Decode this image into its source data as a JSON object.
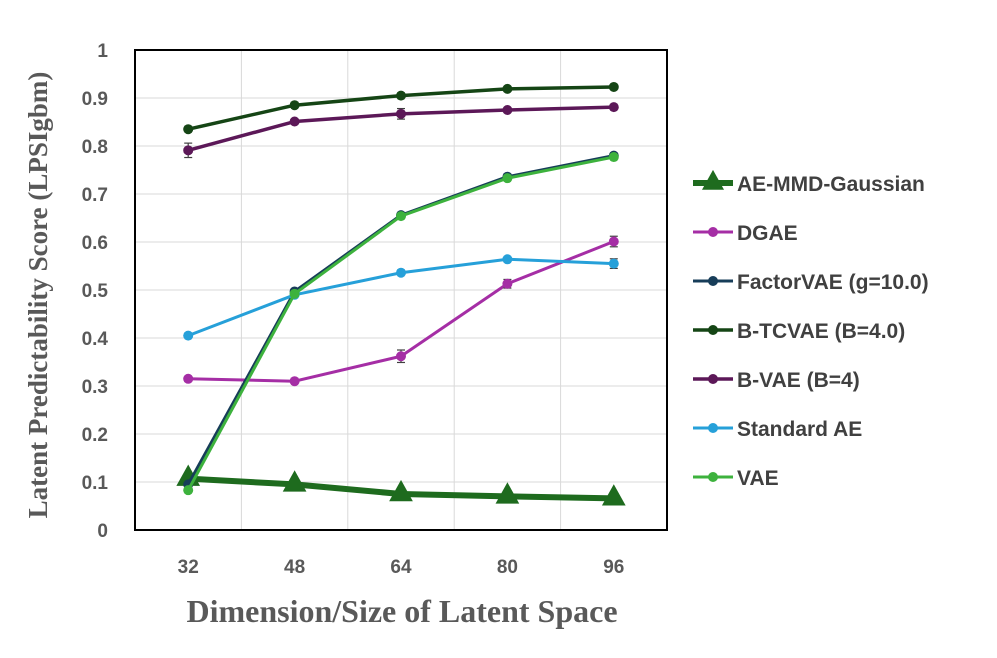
{
  "chart_data": {
    "type": "line",
    "title": "",
    "xlabel": "Dimension/Size of Latent Space",
    "ylabel": "Latent Predictability Score (LPSIgbm)",
    "categories": [
      "32",
      "48",
      "64",
      "80",
      "96"
    ],
    "ylim": [
      0,
      1
    ],
    "yticks": [
      "0",
      "0.1",
      "0.2",
      "0.3",
      "0.4",
      "0.5",
      "0.6",
      "0.7",
      "0.8",
      "0.9",
      "1"
    ],
    "grid": true,
    "legend_position": "right",
    "series": [
      {
        "name": "AE-MMD-Gaussian",
        "color": "#1e6b1e",
        "marker": "triangle",
        "width": 6,
        "values": [
          0.107,
          0.095,
          0.075,
          0.07,
          0.066
        ],
        "errors": [
          0,
          0,
          0,
          0,
          0
        ]
      },
      {
        "name": "DGAE",
        "color": "#a52ea5",
        "marker": "circle",
        "width": 3,
        "values": [
          0.315,
          0.31,
          0.362,
          0.513,
          0.601
        ],
        "errors": [
          0,
          0,
          0.013,
          0.009,
          0.011
        ]
      },
      {
        "name": "FactorVAE (g=10.0)",
        "color": "#173d59",
        "marker": "circle",
        "width": 3,
        "values": [
          0.095,
          0.497,
          0.656,
          0.736,
          0.78
        ],
        "errors": [
          0,
          0,
          0,
          0,
          0
        ]
      },
      {
        "name": "B-TCVAE (B=4.0)",
        "color": "#154515",
        "marker": "circle",
        "width": 3.5,
        "values": [
          0.835,
          0.885,
          0.905,
          0.919,
          0.923
        ],
        "errors": [
          0,
          0,
          0,
          0,
          0
        ]
      },
      {
        "name": "B-VAE (B=4)",
        "color": "#5c1858",
        "marker": "circle",
        "width": 3.5,
        "values": [
          0.791,
          0.851,
          0.867,
          0.875,
          0.881
        ],
        "errors": [
          0.015,
          0,
          0.011,
          0,
          0
        ]
      },
      {
        "name": "Standard AE",
        "color": "#26a0d9",
        "marker": "circle",
        "width": 3,
        "values": [
          0.405,
          0.49,
          0.536,
          0.564,
          0.555
        ],
        "errors": [
          0,
          0,
          0,
          0,
          0.01
        ]
      },
      {
        "name": "VAE",
        "color": "#3db23d",
        "marker": "circle",
        "width": 3,
        "values": [
          0.083,
          0.492,
          0.654,
          0.733,
          0.777
        ],
        "errors": [
          0,
          0,
          0,
          0,
          0
        ]
      }
    ]
  }
}
